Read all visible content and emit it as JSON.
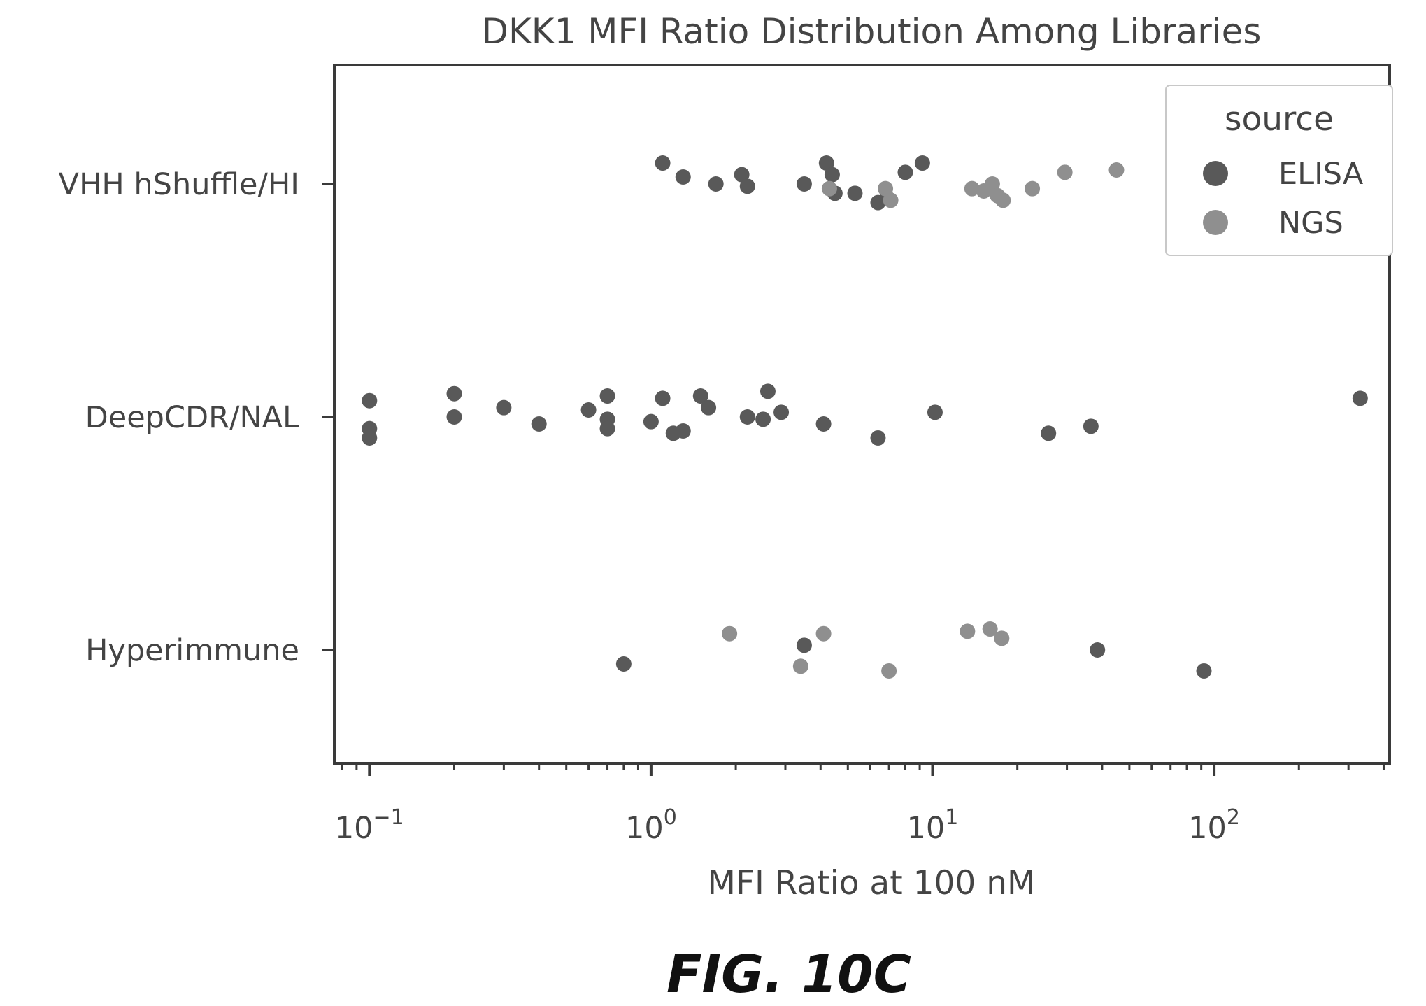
{
  "figure_caption": "FIG. 10C",
  "chart_data": {
    "type": "scatter",
    "title": "DKK1 MFI Ratio Distribution Among Libraries",
    "xlabel": "MFI Ratio at 100 nM",
    "ylabel": "",
    "xscale": "log",
    "xlim": [
      0.075,
      420
    ],
    "x_ticks": [
      {
        "value": 0.1,
        "base": "10",
        "exp": "−1"
      },
      {
        "value": 1,
        "base": "10",
        "exp": "0"
      },
      {
        "value": 10,
        "base": "10",
        "exp": "1"
      },
      {
        "value": 100,
        "base": "10",
        "exp": "2"
      }
    ],
    "categories": [
      "VHH hShuffle/HI",
      "DeepCDR/NAL",
      "Hyperimmune"
    ],
    "grid": false,
    "legend": {
      "title": "source",
      "position": "top-right",
      "entries": [
        "ELISA",
        "NGS"
      ]
    },
    "colors": {
      "ELISA": "#595959",
      "NGS": "#8f8f8f",
      "axis": "#3a3a3a",
      "text": "#444444"
    },
    "series": [
      {
        "name": "ELISA",
        "points": [
          {
            "category": "VHH hShuffle/HI",
            "x": 1.1,
            "jitter": -0.09
          },
          {
            "category": "VHH hShuffle/HI",
            "x": 1.3,
            "jitter": -0.03
          },
          {
            "category": "VHH hShuffle/HI",
            "x": 1.7,
            "jitter": 0.0
          },
          {
            "category": "VHH hShuffle/HI",
            "x": 2.1,
            "jitter": -0.04
          },
          {
            "category": "VHH hShuffle/HI",
            "x": 2.2,
            "jitter": 0.01
          },
          {
            "category": "VHH hShuffle/HI",
            "x": 3.5,
            "jitter": 0.0
          },
          {
            "category": "VHH hShuffle/HI",
            "x": 4.2,
            "jitter": -0.09
          },
          {
            "category": "VHH hShuffle/HI",
            "x": 4.4,
            "jitter": -0.04
          },
          {
            "category": "VHH hShuffle/HI",
            "x": 4.5,
            "jitter": 0.04
          },
          {
            "category": "VHH hShuffle/HI",
            "x": 5.3,
            "jitter": 0.04
          },
          {
            "category": "VHH hShuffle/HI",
            "x": 6.4,
            "jitter": 0.08
          },
          {
            "category": "VHH hShuffle/HI",
            "x": 6.9,
            "jitter": 0.06
          },
          {
            "category": "VHH hShuffle/HI",
            "x": 8.0,
            "jitter": -0.05
          },
          {
            "category": "VHH hShuffle/HI",
            "x": 9.2,
            "jitter": -0.09
          },
          {
            "category": "DeepCDR/NAL",
            "x": 0.1,
            "jitter": -0.07
          },
          {
            "category": "DeepCDR/NAL",
            "x": 0.1,
            "jitter": 0.05
          },
          {
            "category": "DeepCDR/NAL",
            "x": 0.1,
            "jitter": 0.09
          },
          {
            "category": "DeepCDR/NAL",
            "x": 0.2,
            "jitter": -0.1
          },
          {
            "category": "DeepCDR/NAL",
            "x": 0.2,
            "jitter": 0.0
          },
          {
            "category": "DeepCDR/NAL",
            "x": 0.3,
            "jitter": -0.04
          },
          {
            "category": "DeepCDR/NAL",
            "x": 0.4,
            "jitter": 0.03
          },
          {
            "category": "DeepCDR/NAL",
            "x": 0.6,
            "jitter": -0.03
          },
          {
            "category": "DeepCDR/NAL",
            "x": 0.7,
            "jitter": -0.09
          },
          {
            "category": "DeepCDR/NAL",
            "x": 0.7,
            "jitter": 0.01
          },
          {
            "category": "DeepCDR/NAL",
            "x": 0.7,
            "jitter": 0.05
          },
          {
            "category": "DeepCDR/NAL",
            "x": 1.0,
            "jitter": 0.02
          },
          {
            "category": "DeepCDR/NAL",
            "x": 1.1,
            "jitter": -0.08
          },
          {
            "category": "DeepCDR/NAL",
            "x": 1.2,
            "jitter": 0.07
          },
          {
            "category": "DeepCDR/NAL",
            "x": 1.3,
            "jitter": 0.06
          },
          {
            "category": "DeepCDR/NAL",
            "x": 1.5,
            "jitter": -0.09
          },
          {
            "category": "DeepCDR/NAL",
            "x": 1.6,
            "jitter": -0.04
          },
          {
            "category": "DeepCDR/NAL",
            "x": 2.2,
            "jitter": 0.0
          },
          {
            "category": "DeepCDR/NAL",
            "x": 2.5,
            "jitter": 0.01
          },
          {
            "category": "DeepCDR/NAL",
            "x": 2.6,
            "jitter": -0.11
          },
          {
            "category": "DeepCDR/NAL",
            "x": 2.9,
            "jitter": -0.02
          },
          {
            "category": "DeepCDR/NAL",
            "x": 4.1,
            "jitter": 0.03
          },
          {
            "category": "DeepCDR/NAL",
            "x": 6.4,
            "jitter": 0.09
          },
          {
            "category": "DeepCDR/NAL",
            "x": 10.2,
            "jitter": -0.02
          },
          {
            "category": "DeepCDR/NAL",
            "x": 25.8,
            "jitter": 0.07
          },
          {
            "category": "DeepCDR/NAL",
            "x": 36.5,
            "jitter": 0.04
          },
          {
            "category": "DeepCDR/NAL",
            "x": 330,
            "jitter": -0.08
          },
          {
            "category": "Hyperimmune",
            "x": 0.8,
            "jitter": 0.06
          },
          {
            "category": "Hyperimmune",
            "x": 3.5,
            "jitter": -0.02
          },
          {
            "category": "Hyperimmune",
            "x": 38.5,
            "jitter": 0.0
          },
          {
            "category": "Hyperimmune",
            "x": 92,
            "jitter": 0.09
          }
        ]
      },
      {
        "name": "NGS",
        "points": [
          {
            "category": "VHH hShuffle/HI",
            "x": 4.3,
            "jitter": 0.02
          },
          {
            "category": "VHH hShuffle/HI",
            "x": 6.8,
            "jitter": 0.02
          },
          {
            "category": "VHH hShuffle/HI",
            "x": 7.1,
            "jitter": 0.07
          },
          {
            "category": "VHH hShuffle/HI",
            "x": 13.8,
            "jitter": 0.02
          },
          {
            "category": "VHH hShuffle/HI",
            "x": 15.2,
            "jitter": 0.03
          },
          {
            "category": "VHH hShuffle/HI",
            "x": 16.3,
            "jitter": 0.0
          },
          {
            "category": "VHH hShuffle/HI",
            "x": 17.0,
            "jitter": 0.05
          },
          {
            "category": "VHH hShuffle/HI",
            "x": 17.8,
            "jitter": 0.07
          },
          {
            "category": "VHH hShuffle/HI",
            "x": 22.6,
            "jitter": 0.02
          },
          {
            "category": "VHH hShuffle/HI",
            "x": 29.5,
            "jitter": -0.05
          },
          {
            "category": "VHH hShuffle/HI",
            "x": 45,
            "jitter": -0.06
          },
          {
            "category": "Hyperimmune",
            "x": 1.9,
            "jitter": -0.07
          },
          {
            "category": "Hyperimmune",
            "x": 3.4,
            "jitter": 0.07
          },
          {
            "category": "Hyperimmune",
            "x": 4.1,
            "jitter": -0.07
          },
          {
            "category": "Hyperimmune",
            "x": 7.0,
            "jitter": 0.09
          },
          {
            "category": "Hyperimmune",
            "x": 13.3,
            "jitter": -0.08
          },
          {
            "category": "Hyperimmune",
            "x": 16.0,
            "jitter": -0.09
          },
          {
            "category": "Hyperimmune",
            "x": 17.6,
            "jitter": -0.05
          }
        ]
      }
    ]
  }
}
